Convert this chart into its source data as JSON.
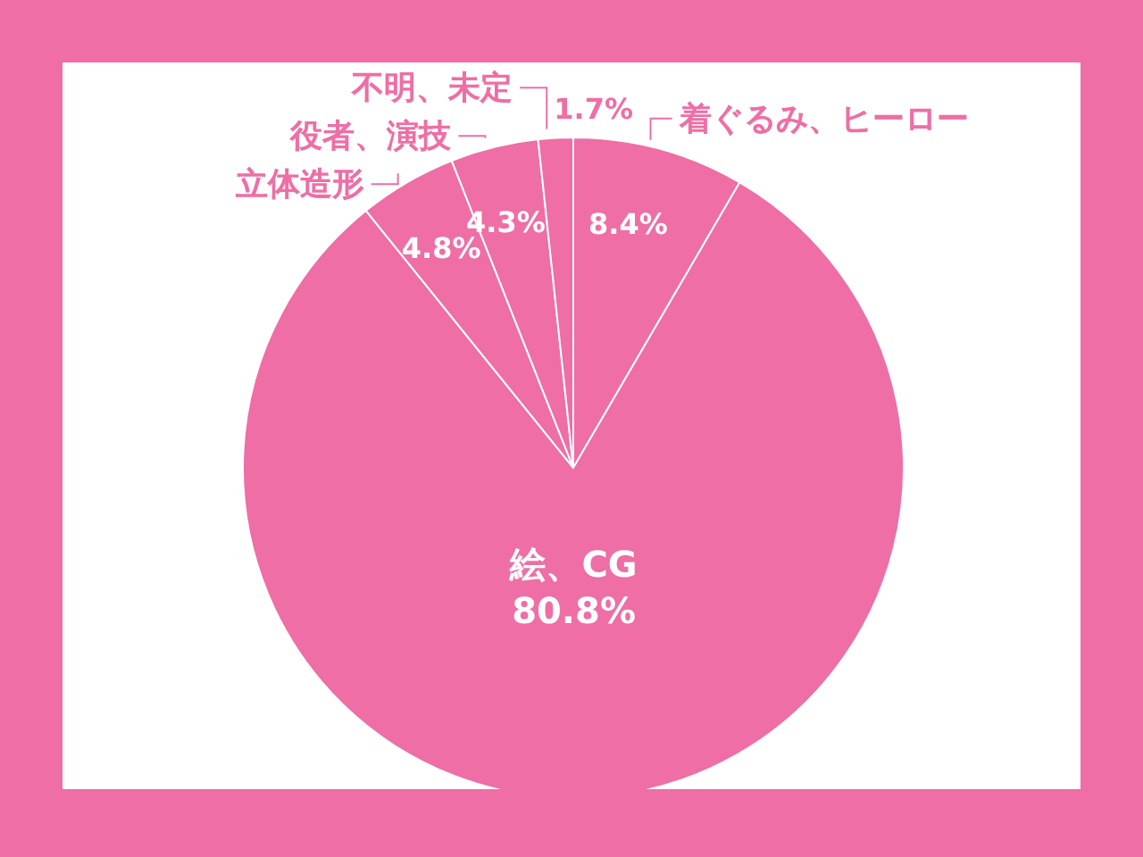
{
  "chart_data": {
    "type": "pie",
    "categories": [
      "着ぐるみ、ヒーロー",
      "絵、CG",
      "立体造形",
      "役者、演技",
      "不明、未定"
    ],
    "values": [
      8.4,
      80.8,
      4.8,
      4.3,
      1.7
    ],
    "colors": [
      "#ee6ea5",
      "#ee6ea5",
      "#ee6ea5",
      "#ee6ea5",
      "#ee6ea5"
    ],
    "value_labels": [
      "8.4%",
      "80.8%",
      "4.8%",
      "4.3%",
      "1.7%"
    ],
    "legend": false
  }
}
